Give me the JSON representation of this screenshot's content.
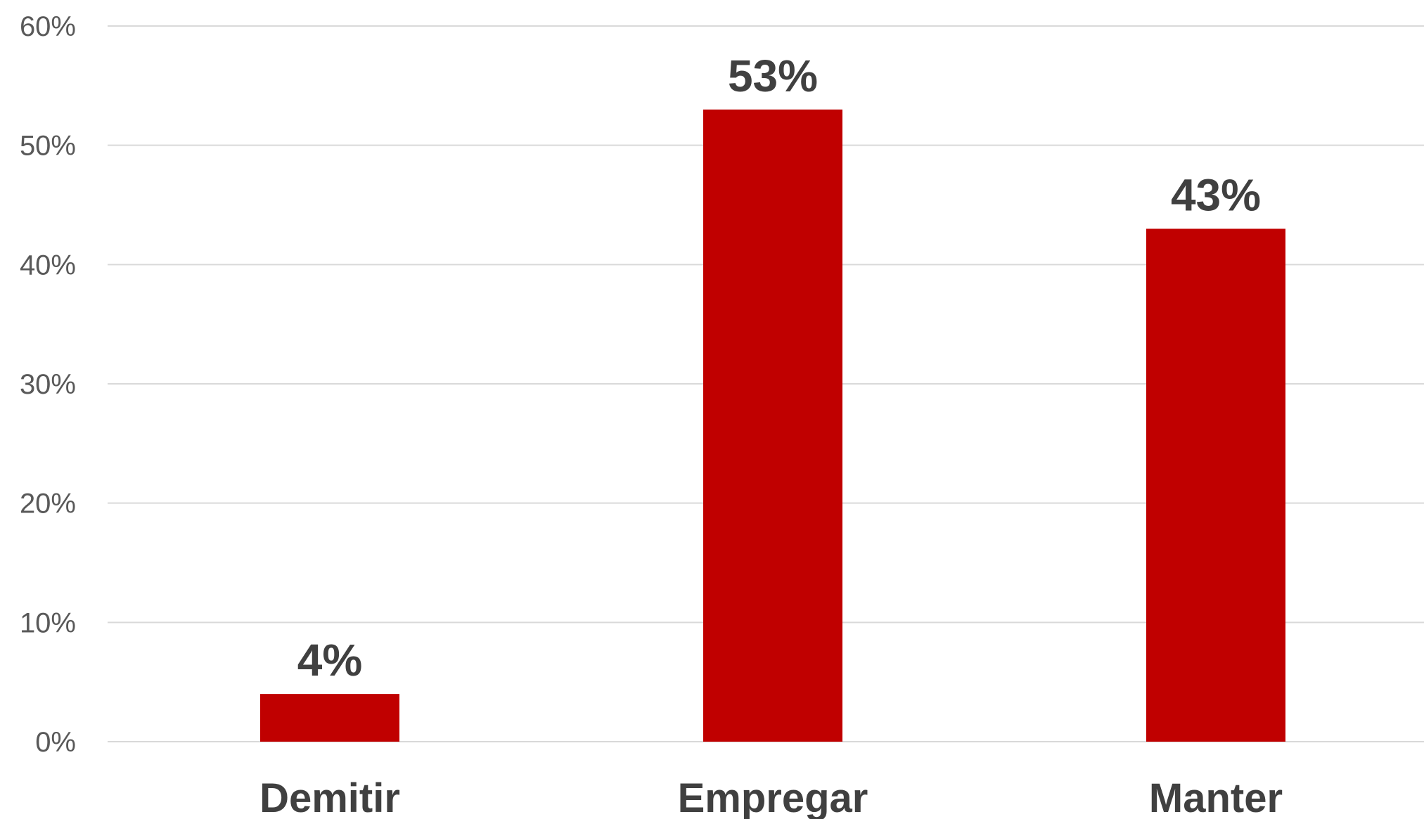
{
  "chart_data": {
    "type": "bar",
    "categories": [
      "Demitir",
      "Empregar",
      "Manter"
    ],
    "values": [
      4,
      53,
      43
    ],
    "data_labels": [
      "4%",
      "53%",
      "43%"
    ],
    "y_ticks": [
      "0%",
      "10%",
      "20%",
      "30%",
      "40%",
      "50%",
      "60%"
    ],
    "y_tick_values": [
      0,
      10,
      20,
      30,
      40,
      50,
      60
    ],
    "ylim": [
      0,
      60
    ],
    "grid": true,
    "legend": "none",
    "title": "",
    "xlabel": "",
    "ylabel": "",
    "colors": {
      "bar": "#c00000",
      "grid": "#d9d9d9",
      "tick_text": "#595959",
      "label_text": "#404040"
    }
  }
}
